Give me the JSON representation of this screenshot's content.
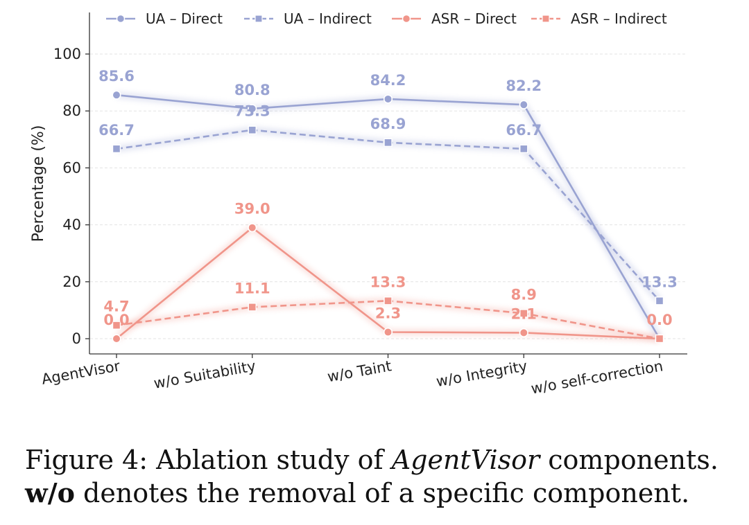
{
  "chart_data": {
    "type": "line",
    "title": "",
    "xlabel": "",
    "ylabel": "Percentage (%)",
    "ylim": [
      -5,
      115
    ],
    "yticks": [
      0,
      20,
      40,
      60,
      80,
      100
    ],
    "grid": "horizontal dashed",
    "legend_position": "top",
    "categories": [
      "AgentVisor",
      "w/o Suitability",
      "w/o Taint",
      "w/o Integrity",
      "w/o self-correction"
    ],
    "series": [
      {
        "name": "UA – Direct",
        "values": [
          85.6,
          80.8,
          84.2,
          82.2,
          0.0
        ],
        "labels": [
          "85.6",
          "80.8",
          "84.2",
          "82.2",
          ""
        ],
        "color": "#99a3d2",
        "dash": "solid",
        "marker": "circle"
      },
      {
        "name": "UA – Indirect",
        "values": [
          66.7,
          73.3,
          68.9,
          66.7,
          13.3
        ],
        "labels": [
          "66.7",
          "73.3",
          "68.9",
          "66.7",
          "13.3"
        ],
        "color": "#99a3d2",
        "dash": "dashed",
        "marker": "square"
      },
      {
        "name": "ASR – Direct",
        "values": [
          0.0,
          39.0,
          2.3,
          2.1,
          0.0
        ],
        "labels": [
          "0.0",
          "39.0",
          "2.3",
          "2.1",
          "0.0"
        ],
        "color": "#f0958a",
        "dash": "solid",
        "marker": "circle"
      },
      {
        "name": "ASR – Indirect",
        "values": [
          4.7,
          11.1,
          13.3,
          8.9,
          0.0
        ],
        "labels": [
          "4.7",
          "11.1",
          "13.3",
          "8.9",
          ""
        ],
        "color": "#f0958a",
        "dash": "dashed",
        "marker": "square"
      }
    ]
  },
  "caption": {
    "line1_prefix": "Figure 4:  Ablation study of ",
    "line1_italic": "AgentVisor",
    "line1_suffix": " components.",
    "line2_bold": "w/o",
    "line2_rest": " denotes the removal of a specific component."
  }
}
